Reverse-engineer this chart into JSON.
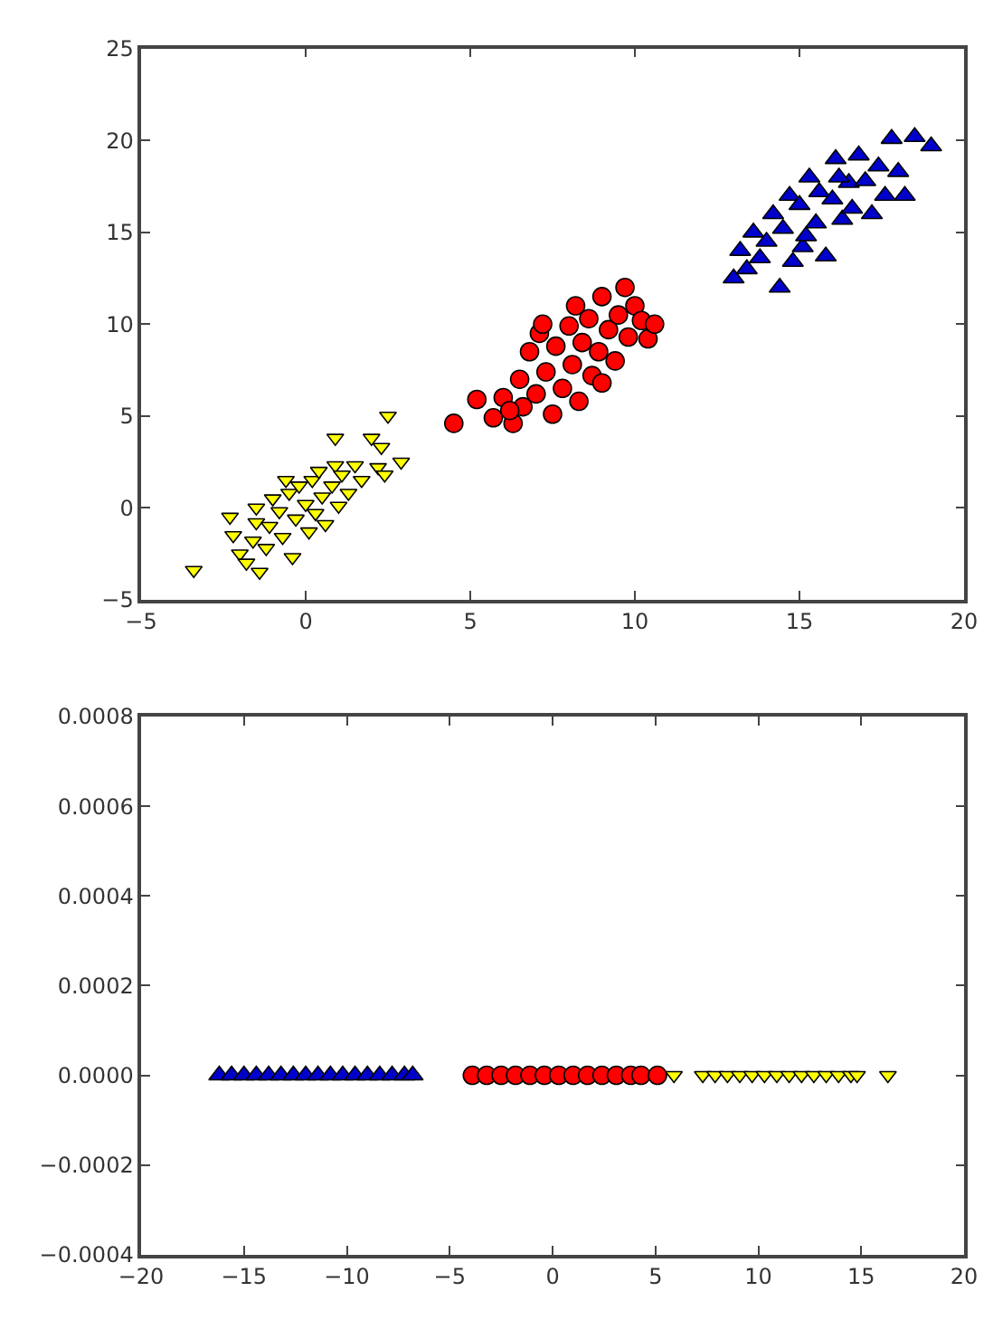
{
  "chart_data": [
    {
      "type": "scatter",
      "xlim": [
        -5,
        20
      ],
      "ylim": [
        -5,
        25
      ],
      "xticks": [
        {
          "value": -5,
          "label": "−5"
        },
        0,
        5,
        10,
        15,
        20
      ],
      "yticks": [
        {
          "value": -5,
          "label": "−5"
        },
        0,
        5,
        10,
        15,
        20,
        25
      ],
      "series": [
        {
          "color": "#ffff00",
          "marker": "triangle-down",
          "x": [
            -3.4,
            -2.3,
            -2.2,
            -2,
            -1.8,
            -1.6,
            -1.5,
            -1.4,
            -1.2,
            -1.1,
            -1,
            -0.8,
            -0.7,
            -0.5,
            -0.4,
            -0.3,
            -0.2,
            0,
            0.1,
            0.2,
            0.3,
            0.4,
            0.5,
            0.6,
            0.8,
            0.9,
            1,
            1.1,
            1.3,
            1.5,
            1.7,
            2,
            2.2,
            2.3,
            2.4,
            2.5,
            2.9,
            0.9,
            -0.6,
            -1.5
          ],
          "values": [
            -3.4,
            -0.5,
            -1.5,
            -2.5,
            -3,
            -1.8,
            -0.8,
            -3.5,
            -2.2,
            -1,
            0.5,
            -0.2,
            -1.6,
            0.8,
            -2.7,
            -0.6,
            1.2,
            0.2,
            -1.3,
            1.5,
            -0.3,
            2,
            0.6,
            -0.9,
            1.2,
            2.3,
            0.1,
            1.8,
            0.8,
            2.3,
            1.5,
            3.8,
            2.2,
            3.3,
            1.8,
            5,
            2.5,
            3.8,
            1.5,
            0
          ]
        },
        {
          "color": "#ff0000",
          "marker": "circle",
          "x": [
            4.5,
            5.2,
            5.7,
            6,
            6.3,
            6.5,
            6.6,
            6.8,
            7,
            7.1,
            7.3,
            7.5,
            7.6,
            7.8,
            8,
            8.1,
            8.3,
            8.4,
            8.6,
            8.7,
            8.9,
            9,
            9.2,
            9.4,
            9.5,
            9.7,
            9.8,
            10,
            10.2,
            10.4,
            10.6,
            7.2,
            8.2,
            6.2,
            9
          ],
          "values": [
            4.6,
            5.9,
            4.9,
            6,
            4.6,
            7,
            5.5,
            8.5,
            6.2,
            9.5,
            7.4,
            5.1,
            8.8,
            6.5,
            9.9,
            7.8,
            5.8,
            9,
            10.3,
            7.2,
            8.5,
            11.5,
            9.7,
            8,
            10.5,
            12,
            9.3,
            11,
            10.2,
            9.2,
            10,
            10,
            11,
            5.3,
            6.8
          ]
        },
        {
          "color": "#0000cc",
          "marker": "triangle",
          "x": [
            13,
            13.2,
            13.4,
            13.6,
            13.8,
            14,
            14.2,
            14.4,
            14.5,
            14.7,
            14.8,
            15,
            15.1,
            15.3,
            15.5,
            15.6,
            15.8,
            16,
            16.1,
            16.3,
            16.5,
            16.6,
            16.8,
            17,
            17.2,
            17.4,
            17.6,
            17.8,
            18,
            18.2,
            18.5,
            19,
            15.2,
            16.2
          ],
          "values": [
            12.5,
            14,
            13,
            15,
            13.6,
            14.5,
            16,
            12,
            15.2,
            17,
            13.4,
            16.5,
            14.2,
            18,
            15.5,
            17.2,
            13.7,
            16.8,
            19,
            15.7,
            17.7,
            16.3,
            19.2,
            17.8,
            16,
            18.6,
            17,
            20.1,
            18.3,
            17,
            20.2,
            19.7,
            14.8,
            18
          ]
        }
      ]
    },
    {
      "type": "scatter",
      "xlim": [
        -20,
        20
      ],
      "ylim": [
        -0.0004,
        0.0008
      ],
      "xticks": [
        {
          "value": -20,
          "label": "−20"
        },
        {
          "value": -15,
          "label": "−15"
        },
        {
          "value": -10,
          "label": "−10"
        },
        {
          "value": -5,
          "label": "−5"
        },
        0,
        5,
        10,
        15,
        20
      ],
      "yticks": [
        {
          "value": -0.0004,
          "label": "−0.0004"
        },
        {
          "value": -0.0002,
          "label": "−0.0002"
        },
        {
          "value": 0,
          "label": "0.0000"
        },
        {
          "value": 0.0002,
          "label": "0.0002"
        },
        {
          "value": 0.0004,
          "label": "0.0004"
        },
        {
          "value": 0.0006,
          "label": "0.0006"
        },
        {
          "value": 0.0008,
          "label": "0.0008"
        }
      ],
      "series": [
        {
          "color": "#0000cc",
          "marker": "triangle",
          "x": [
            -16.2,
            -15.6,
            -15,
            -14.4,
            -13.8,
            -13.2,
            -12.6,
            -12,
            -11.4,
            -10.8,
            -10.2,
            -9.6,
            -9,
            -8.4,
            -7.8,
            -7.2,
            -6.8
          ],
          "values": [
            0,
            0,
            0,
            0,
            0,
            0,
            0,
            0,
            0,
            0,
            0,
            0,
            0,
            0,
            0,
            0,
            0
          ]
        },
        {
          "color": "#ff0000",
          "marker": "circle",
          "x": [
            -3.9,
            -3.2,
            -2.5,
            -1.8,
            -1.1,
            -0.4,
            0.3,
            1,
            1.7,
            2.4,
            3.1,
            3.8,
            4.3,
            5.1
          ],
          "values": [
            0,
            0,
            0,
            0,
            0,
            0,
            0,
            0,
            0,
            0,
            0,
            0,
            0,
            0
          ]
        },
        {
          "color": "#ffff00",
          "marker": "triangle-down",
          "x": [
            5.9,
            7.3,
            7.9,
            8.5,
            9.1,
            9.7,
            10.3,
            10.9,
            11.5,
            12.1,
            12.7,
            13.3,
            13.9,
            14.5,
            14.8,
            16.3
          ],
          "values": [
            0,
            0,
            0,
            0,
            0,
            0,
            0,
            0,
            0,
            0,
            0,
            0,
            0,
            0,
            0,
            0
          ]
        }
      ]
    }
  ]
}
